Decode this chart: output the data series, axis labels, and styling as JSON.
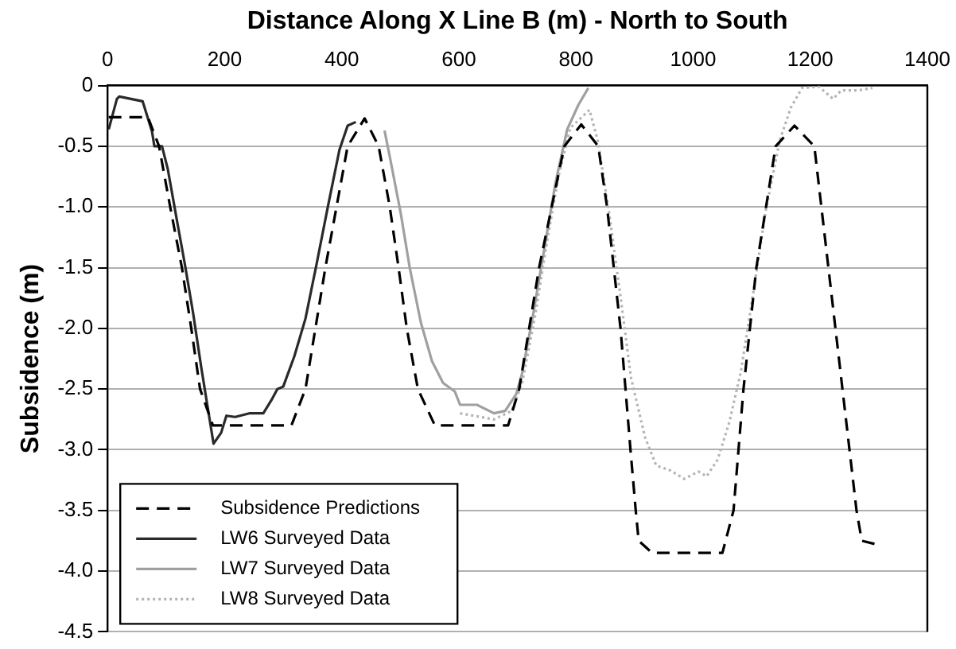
{
  "chart_data": {
    "type": "line",
    "xlabel": "Distance Along X Line B (m) - North to South",
    "ylabel": "Subsidence (m)",
    "xlim": [
      0,
      1400
    ],
    "xticks": [
      0,
      200,
      400,
      600,
      800,
      1000,
      1200,
      1400
    ],
    "ylim": [
      -4.5,
      0
    ],
    "yticks": [
      0,
      {
        "value": -0.5,
        "label": "-0.5"
      },
      {
        "value": -1,
        "label": "-1.0"
      },
      {
        "value": -1.5,
        "label": "-1.5"
      },
      {
        "value": -2,
        "label": "-2.0"
      },
      {
        "value": -2.5,
        "label": "-2.5"
      },
      {
        "value": -3,
        "label": "-3.0"
      },
      {
        "value": -3.5,
        "label": "-3.5"
      },
      {
        "value": -4,
        "label": "-4.0"
      },
      {
        "value": -4.5,
        "label": "-4.5"
      }
    ],
    "grid": "y",
    "legend": "bottom left",
    "marker": "none",
    "series": [
      {
        "name": "Subsidence Predictions",
        "color": "#000000",
        "line_style": "dashed",
        "x": [
          2,
          69,
          88,
          107,
          127,
          143,
          158,
          180,
          314,
          338,
          355,
          372,
          391,
          410,
          439,
          463,
          482,
          497,
          511,
          530,
          559,
          684,
          703,
          737,
          780,
          809,
          838,
          853,
          876,
          893,
          902,
          907,
          930,
          1050,
          1069,
          1086,
          1108,
          1141,
          1173,
          1207,
          1231,
          1255,
          1279,
          1288,
          1313
        ],
        "values": [
          -0.26,
          -0.26,
          -0.5,
          -1.0,
          -1.5,
          -2.0,
          -2.5,
          -2.8,
          -2.8,
          -2.5,
          -2.0,
          -1.5,
          -1.0,
          -0.5,
          -0.27,
          -0.5,
          -1.0,
          -1.5,
          -2.0,
          -2.5,
          -2.8,
          -2.8,
          -2.5,
          -1.5,
          -0.5,
          -0.32,
          -0.5,
          -1.0,
          -2.0,
          -3.0,
          -3.5,
          -3.75,
          -3.85,
          -3.85,
          -3.5,
          -2.5,
          -1.5,
          -0.5,
          -0.33,
          -0.5,
          -1.5,
          -2.5,
          -3.5,
          -3.75,
          -3.78
        ]
      },
      {
        "name": "LW6 Surveyed Data",
        "color": "#2a2a2a",
        "line_style": "solid",
        "x": [
          2,
          16,
          20,
          60,
          76,
          80,
          93,
          103,
          117,
          132,
          146,
          160,
          175,
          181,
          194,
          203,
          218,
          242,
          266,
          280,
          290,
          300,
          319,
          338,
          357,
          377,
          396,
          410,
          424
        ],
        "values": [
          -0.36,
          -0.11,
          -0.09,
          -0.13,
          -0.38,
          -0.5,
          -0.5,
          -0.69,
          -1.07,
          -1.47,
          -1.87,
          -2.32,
          -2.77,
          -2.95,
          -2.86,
          -2.72,
          -2.73,
          -2.7,
          -2.7,
          -2.59,
          -2.5,
          -2.48,
          -2.23,
          -1.92,
          -1.47,
          -0.98,
          -0.53,
          -0.33,
          -0.3
        ]
      },
      {
        "name": "LW7 Surveyed Data",
        "color": "#a0a0a0",
        "line_style": "solid",
        "x": [
          473,
          483,
          501,
          516,
          535,
          554,
          573,
          593,
          602,
          631,
          660,
          679,
          698,
          708,
          727,
          746,
          765,
          785,
          804,
          821
        ],
        "values": [
          -0.37,
          -0.61,
          -1.06,
          -1.5,
          -1.95,
          -2.27,
          -2.45,
          -2.52,
          -2.63,
          -2.63,
          -2.7,
          -2.68,
          -2.54,
          -2.37,
          -1.88,
          -1.34,
          -0.8,
          -0.36,
          -0.16,
          -0.02
        ]
      },
      {
        "name": "LW8 Surveyed Data",
        "color": "#b4b4b4",
        "line_style": "dotted",
        "x": [
          602,
          660,
          690,
          708,
          730,
          750,
          770,
          790,
          823,
          837,
          856,
          875,
          894,
          918,
          937,
          961,
          985,
          1009,
          1023,
          1042,
          1062,
          1081,
          1100,
          1124,
          1148,
          1167,
          1186,
          1215,
          1239,
          1253,
          1282,
          1306
        ],
        "values": [
          -2.7,
          -2.75,
          -2.68,
          -2.45,
          -1.9,
          -1.3,
          -0.75,
          -0.35,
          -0.2,
          -0.45,
          -1.03,
          -1.7,
          -2.41,
          -2.9,
          -3.13,
          -3.17,
          -3.24,
          -3.18,
          -3.22,
          -3.08,
          -2.77,
          -2.37,
          -1.79,
          -1.03,
          -0.45,
          -0.18,
          -0.02,
          -0.01,
          -0.11,
          -0.04,
          -0.04,
          -0.02
        ]
      }
    ]
  }
}
